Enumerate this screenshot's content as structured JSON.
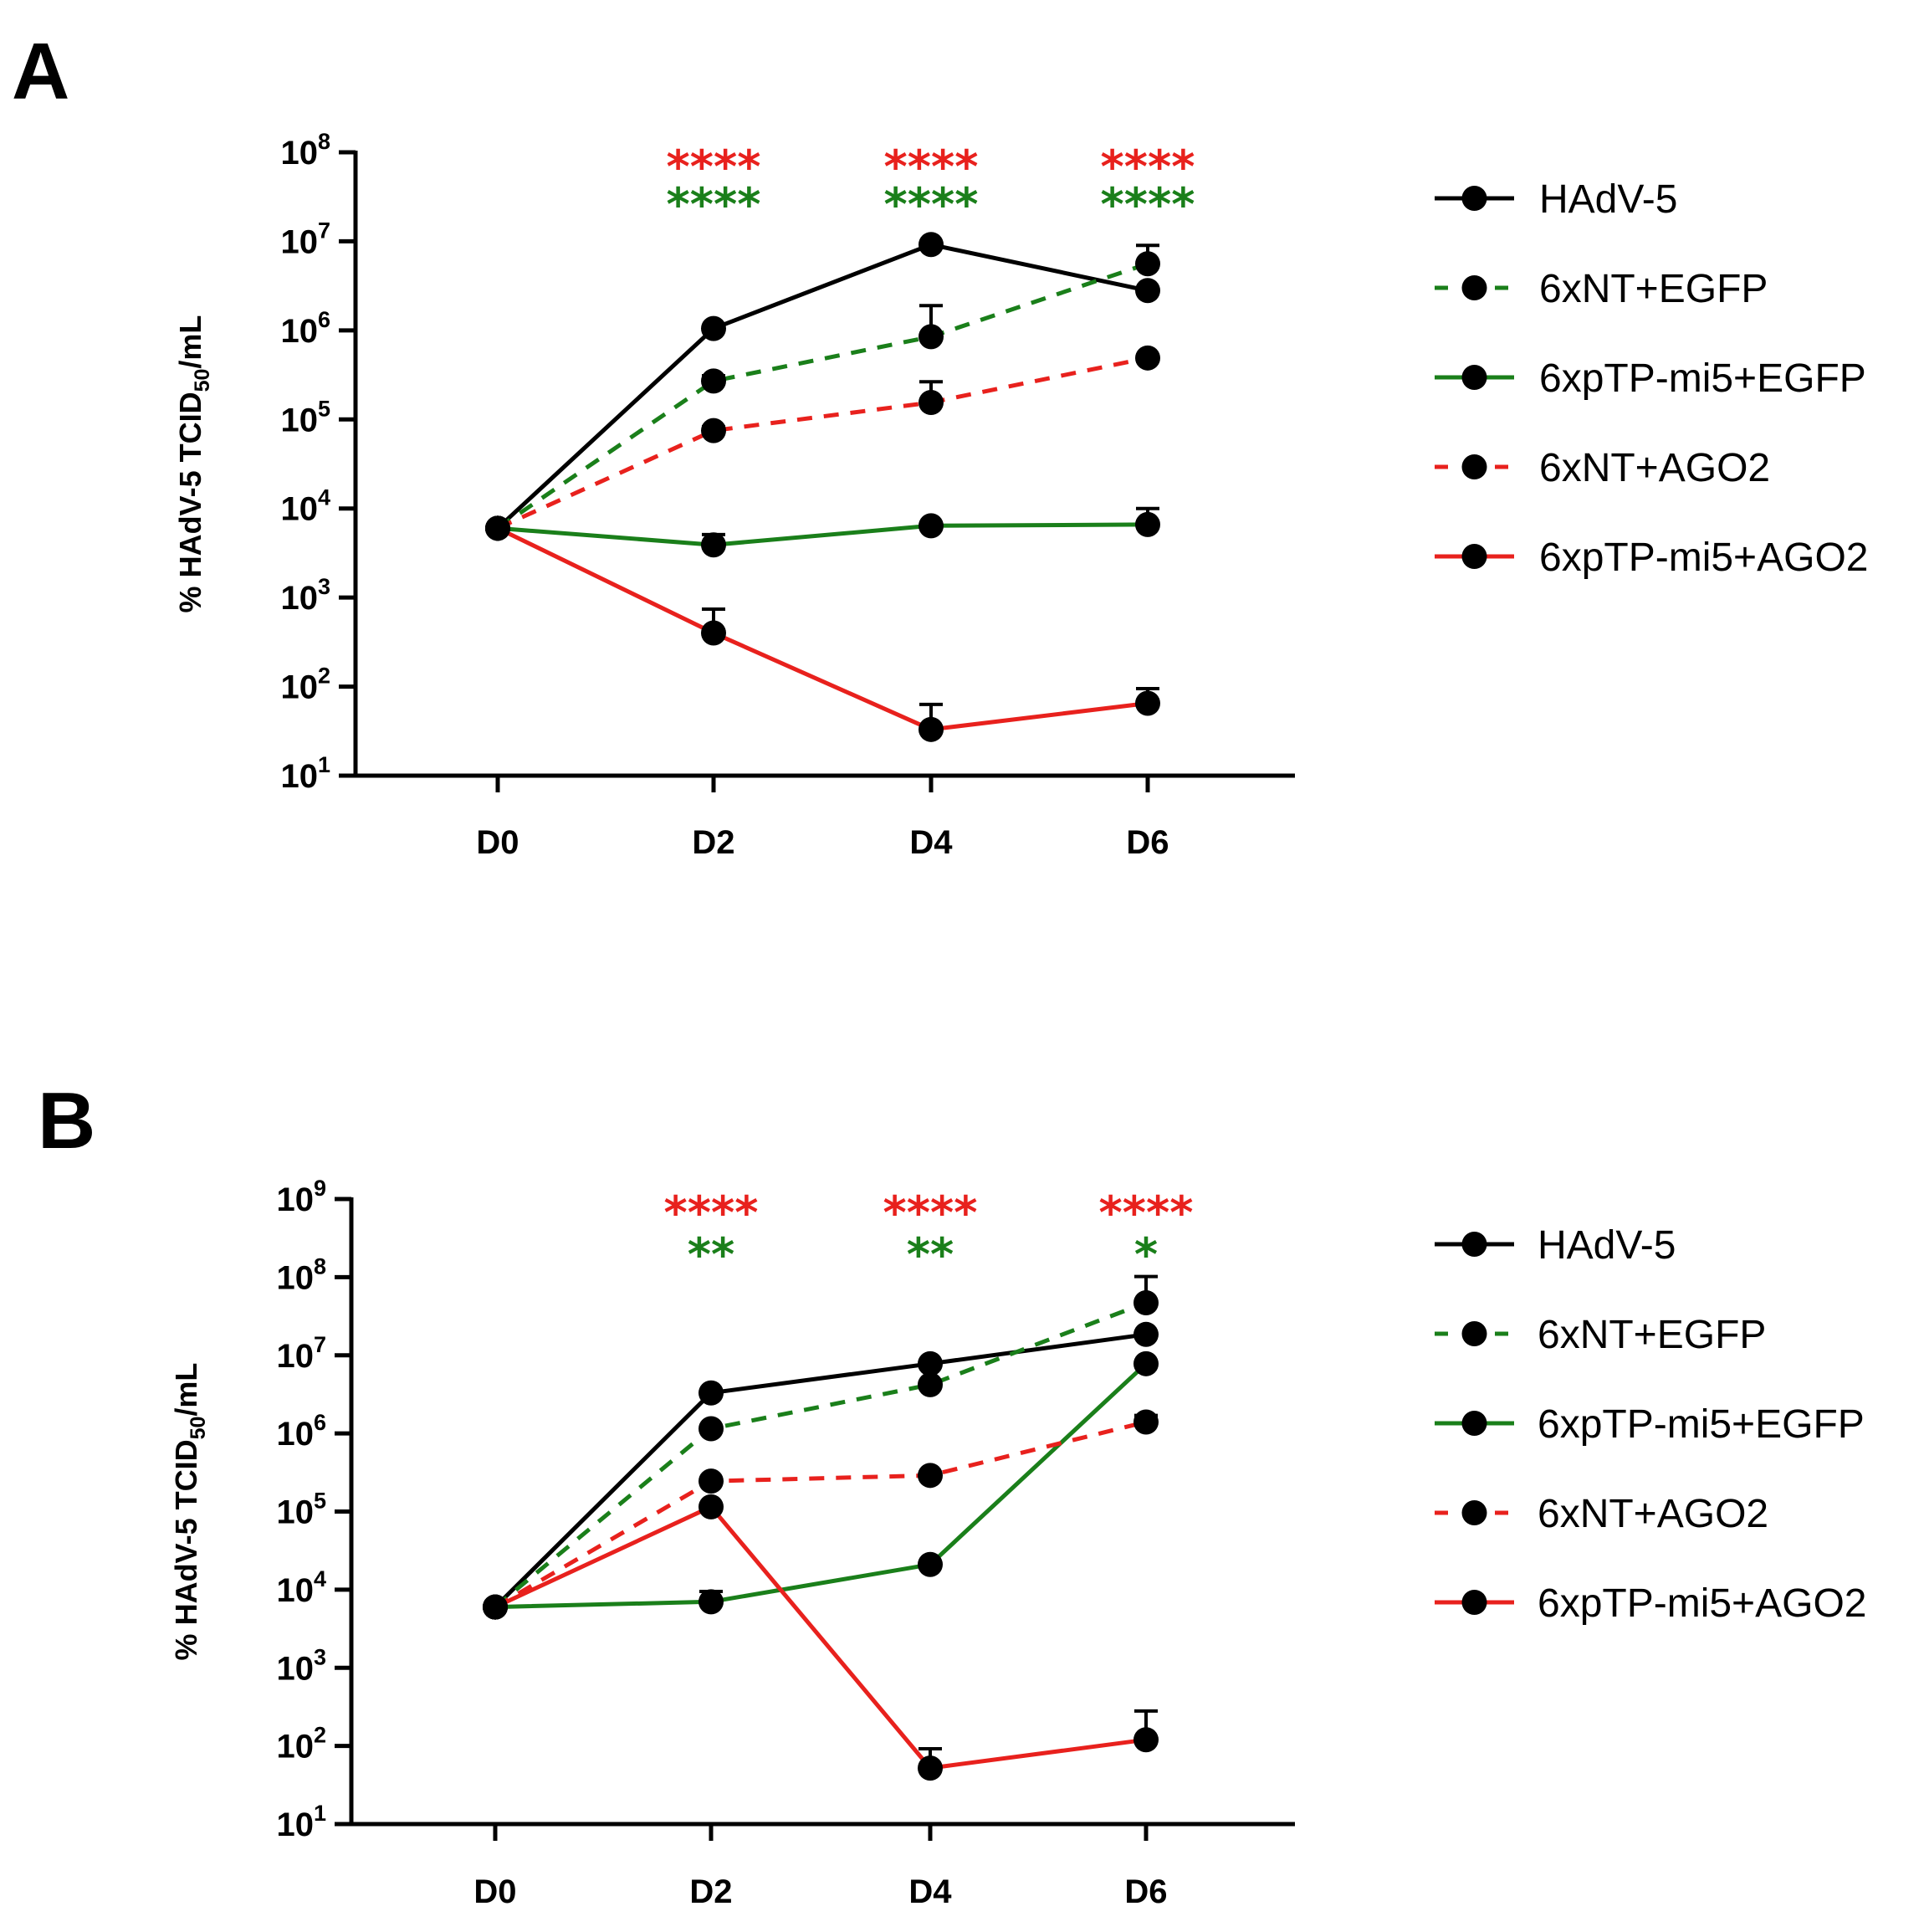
{
  "chart_data": [
    {
      "type": "line",
      "panel": "A",
      "title": "",
      "xlabel": "",
      "ylabel": "% HAdV-5 TCID50/mL",
      "ylabel_main": "% HAdV-5 TCID",
      "ylabel_sub": "50",
      "ylabel_tail": "/mL",
      "yscale": "log",
      "y_exponents": [
        1,
        2,
        3,
        4,
        5,
        6,
        7,
        8
      ],
      "y_tick_base": "10",
      "y_tick_labels": [
        "10^1",
        "10^2",
        "10^3",
        "10^4",
        "10^5",
        "10^6",
        "10^7",
        "10^8"
      ],
      "ylim": [
        10,
        100000000
      ],
      "categories": [
        "D0",
        "D2",
        "D4",
        "D6"
      ],
      "series": [
        {
          "name": "HAdV-5",
          "color": "#000000",
          "dash": "solid",
          "values": [
            6000,
            1050000,
            9200000,
            2800000
          ],
          "errors": [
            0,
            60000,
            700000,
            200000
          ]
        },
        {
          "name": "6xNT+EGFP",
          "color": "#1a7f1a",
          "dash": "dashed",
          "values": [
            6000,
            270000,
            850000,
            5600000
          ],
          "errors": [
            0,
            40000,
            1050000,
            3400000
          ]
        },
        {
          "name": "6xpTP-mi5+EGFP",
          "color": "#1a7f1a",
          "dash": "solid",
          "values": [
            6000,
            3900,
            6400,
            6600
          ],
          "errors": [
            0,
            1200,
            500,
            3400
          ]
        },
        {
          "name": "6xNT+AGO2",
          "color": "#e8211d",
          "dash": "dashed",
          "values": [
            6000,
            75000,
            155000,
            490000
          ],
          "errors": [
            0,
            8000,
            110000,
            40000
          ]
        },
        {
          "name": "6xpTP-mi5+AGO2",
          "color": "#e8211d",
          "dash": "solid",
          "values": [
            6000,
            400,
            33,
            65
          ],
          "errors": [
            0,
            340,
            30,
            30
          ]
        }
      ],
      "significance": [
        {
          "category": "D2",
          "red": "****",
          "green": "****"
        },
        {
          "category": "D4",
          "red": "****",
          "green": "****"
        },
        {
          "category": "D6",
          "red": "****",
          "green": "****"
        }
      ]
    },
    {
      "type": "line",
      "panel": "B",
      "title": "",
      "xlabel": "",
      "ylabel": "% HAdV-5 TCID50/mL",
      "ylabel_main": "% HAdV-5 TCID",
      "ylabel_sub": "50",
      "ylabel_tail": "/mL",
      "yscale": "log",
      "y_exponents": [
        1,
        2,
        3,
        4,
        5,
        6,
        7,
        8,
        9
      ],
      "y_tick_base": "10",
      "y_tick_labels": [
        "10^1",
        "10^2",
        "10^3",
        "10^4",
        "10^5",
        "10^6",
        "10^7",
        "10^8",
        "10^9"
      ],
      "ylim": [
        10,
        1000000000
      ],
      "categories": [
        "D0",
        "D2",
        "D4",
        "D6"
      ],
      "series": [
        {
          "name": "HAdV-5",
          "color": "#000000",
          "dash": "solid",
          "values": [
            6000,
            3300000,
            7800000,
            18500000
          ],
          "errors": [
            0,
            200000,
            500000,
            1500000
          ]
        },
        {
          "name": "6xNT+EGFP",
          "color": "#1a7f1a",
          "dash": "dashed",
          "values": [
            6000,
            1150000,
            4200000,
            47000000
          ],
          "errors": [
            0,
            100000,
            300000,
            55000000
          ]
        },
        {
          "name": "6xpTP-mi5+EGFP",
          "color": "#1a7f1a",
          "dash": "solid",
          "values": [
            6000,
            7000,
            21000,
            7800000
          ],
          "errors": [
            0,
            2500,
            1500,
            500000
          ]
        },
        {
          "name": "6xNT+AGO2",
          "color": "#e8211d",
          "dash": "dashed",
          "values": [
            6000,
            245000,
            290000,
            1400000
          ],
          "errors": [
            0,
            20000,
            20000,
            300000
          ]
        },
        {
          "name": "6xpTP-mi5+AGO2",
          "color": "#e8211d",
          "dash": "solid",
          "values": [
            6000,
            115000,
            52,
            120
          ],
          "errors": [
            0,
            0,
            40,
            160
          ]
        }
      ],
      "significance": [
        {
          "category": "D2",
          "red": "****",
          "green": "**"
        },
        {
          "category": "D4",
          "red": "****",
          "green": "**"
        },
        {
          "category": "D6",
          "red": "****",
          "green": "*"
        }
      ]
    }
  ]
}
